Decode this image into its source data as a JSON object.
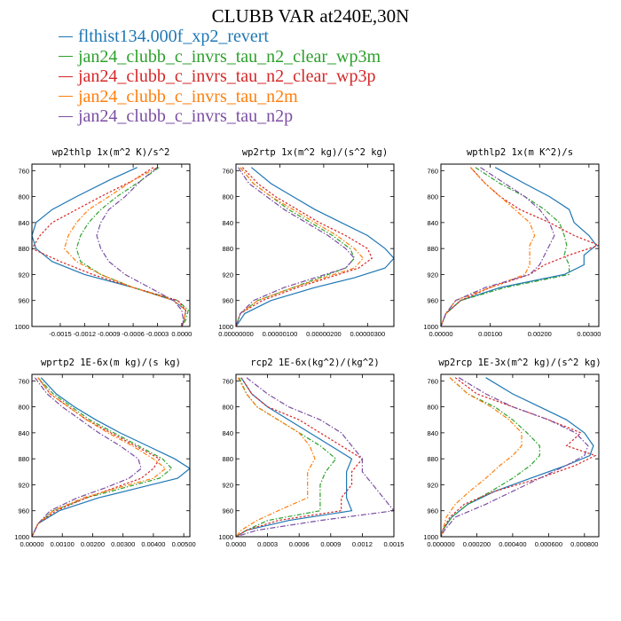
{
  "title": "CLUBB VAR at240E,30N",
  "legend": [
    {
      "name": "flthist134.000f_xp2_revert",
      "color": "#1f77b4"
    },
    {
      "name": "jan24_clubb_c_invrs_tau_n2_clear_wp3m",
      "color": "#2ca02c"
    },
    {
      "name": "jan24_clubb_c_invrs_tau_n2_clear_wp3p",
      "color": "#d62728"
    },
    {
      "name": "jan24_clubb_c_invrs_tau_n2m",
      "color": "#ff7f0e"
    },
    {
      "name": "jan24_clubb_c_invrs_tau_n2p",
      "color": "#7b4ea3"
    }
  ],
  "chart_data": [
    {
      "type": "line",
      "title": "wp2thlp  1x(m^2 K)/s^2",
      "xlim": [
        -0.00185,
        0.0001
      ],
      "ylim": [
        750,
        1000
      ],
      "y_inverted": true,
      "xticks": [
        -0.0015,
        -0.0012,
        -0.0009,
        -0.0006,
        -0.0003,
        0.0
      ],
      "xticklabels": [
        "-0.0015",
        "-0.0012",
        "-0.0009",
        "-0.0006",
        "-0.0003",
        "0.0000"
      ],
      "yticks": [
        760,
        800,
        840,
        880,
        920,
        960,
        1000
      ],
      "y": [
        755,
        775,
        800,
        820,
        840,
        860,
        880,
        900,
        920,
        940,
        960,
        975,
        990,
        1000
      ],
      "series": [
        {
          "name": "flthist134.000f_xp2_revert",
          "x": [
            -0.00055,
            -0.0009,
            -0.0013,
            -0.0016,
            -0.0018,
            -0.00185,
            -0.0018,
            -0.0016,
            -0.0012,
            -0.0006,
            -0.0001,
            5e-05,
            3e-05,
            0.0
          ]
        },
        {
          "name": "jan24_clubb_c_invrs_tau_n2_clear_wp3m",
          "x": [
            -0.00028,
            -0.0005,
            -0.0008,
            -0.001,
            -0.00115,
            -0.00125,
            -0.0013,
            -0.00125,
            -0.001,
            -0.0006,
            -5e-05,
            8e-05,
            5e-05,
            0.0
          ]
        },
        {
          "name": "jan24_clubb_c_invrs_tau_n2_clear_wp3p",
          "x": [
            -0.00035,
            -0.0006,
            -0.001,
            -0.0013,
            -0.0016,
            -0.00175,
            -0.00185,
            -0.0015,
            -0.0011,
            -0.0006,
            -5e-05,
            5e-05,
            3e-05,
            0.0
          ]
        },
        {
          "name": "jan24_clubb_c_invrs_tau_n2m",
          "x": [
            -0.0003,
            -0.0006,
            -0.0009,
            -0.00115,
            -0.0013,
            -0.0014,
            -0.00145,
            -0.0013,
            -0.001,
            -0.0006,
            -0.0001,
            5e-05,
            3e-05,
            0.0
          ]
        },
        {
          "name": "jan24_clubb_c_invrs_tau_n2p",
          "x": [
            -0.0003,
            -0.0005,
            -0.0007,
            -0.0009,
            -0.001,
            -0.00105,
            -0.001,
            -0.0009,
            -0.0007,
            -0.0004,
            -0.0001,
            0.0,
            2e-05,
            0.0
          ]
        }
      ]
    },
    {
      "type": "line",
      "title": "wp2rtp  1x(m^2 kg)/(s^2 kg)",
      "xlim": [
        0.0,
        3.6e-06
      ],
      "ylim": [
        750,
        1000
      ],
      "y_inverted": true,
      "xticks": [
        0.0,
        1e-06,
        2e-06,
        3e-06
      ],
      "xticklabels": [
        "0.00000000",
        "0.00000100",
        "0.00000200",
        "0.00000300"
      ],
      "yticks": [
        760,
        800,
        840,
        880,
        920,
        960,
        1000
      ],
      "y": [
        755,
        780,
        800,
        820,
        840,
        860,
        880,
        895,
        910,
        925,
        940,
        960,
        980,
        1000
      ],
      "series": [
        {
          "name": "flthist134.000f_xp2_revert",
          "x": [
            3.5e-07,
            8e-07,
            1.3e-06,
            1.8e-06,
            2.4e-06,
            3e-06,
            3.4e-06,
            3.6e-06,
            3.4e-06,
            2.7e-06,
            1.8e-06,
            8e-07,
            2e-07,
            0.0
          ]
        },
        {
          "name": "jan24_clubb_c_invrs_tau_n2_clear_wp3m",
          "x": [
            1e-07,
            4e-07,
            8e-07,
            1.2e-06,
            1.7e-06,
            2.2e-06,
            2.6e-06,
            2.7e-06,
            2.5e-06,
            1.9e-06,
            1.3e-06,
            5e-07,
            1e-07,
            0.0
          ]
        },
        {
          "name": "jan24_clubb_c_invrs_tau_n2_clear_wp3p",
          "x": [
            1.5e-07,
            5e-07,
            9e-07,
            1.4e-06,
            1.9e-06,
            2.5e-06,
            3e-06,
            3.1e-06,
            2.8e-06,
            2.1e-06,
            1.4e-06,
            6e-07,
            1e-07,
            0.0
          ]
        },
        {
          "name": "jan24_clubb_c_invrs_tau_n2m",
          "x": [
            1e-07,
            4e-07,
            8e-07,
            1.3e-06,
            1.8e-06,
            2.3e-06,
            2.7e-06,
            2.9e-06,
            2.7e-06,
            2e-06,
            1.3e-06,
            5e-07,
            1e-07,
            0.0
          ]
        },
        {
          "name": "jan24_clubb_c_invrs_tau_n2p",
          "x": [
            5e-08,
            3e-07,
            7e-07,
            1.1e-06,
            1.6e-06,
            2.1e-06,
            2.5e-06,
            2.7e-06,
            2.5e-06,
            1.8e-06,
            1.1e-06,
            4e-07,
            1e-07,
            0.0
          ]
        }
      ]
    },
    {
      "type": "line",
      "title": "wpthlp2  1x(m K^2)/s",
      "xlim": [
        0.0,
        0.0032
      ],
      "ylim": [
        750,
        1000
      ],
      "y_inverted": true,
      "xticks": [
        0.0,
        0.001,
        0.002,
        0.003
      ],
      "xticklabels": [
        "0.00000",
        "0.00100",
        "0.00200",
        "0.00300"
      ],
      "yticks": [
        760,
        800,
        840,
        880,
        920,
        960,
        1000
      ],
      "y": [
        755,
        780,
        800,
        820,
        840,
        860,
        875,
        890,
        905,
        920,
        940,
        960,
        980,
        1000
      ],
      "series": [
        {
          "name": "flthist134.000f_xp2_revert",
          "x": [
            0.0011,
            0.0017,
            0.0022,
            0.0026,
            0.0027,
            0.003,
            0.00315,
            0.0029,
            0.0029,
            0.0025,
            0.0012,
            0.0004,
            0.0001,
            0.0
          ]
        },
        {
          "name": "jan24_clubb_c_invrs_tau_n2_clear_wp3m",
          "x": [
            0.0007,
            0.0012,
            0.0017,
            0.0021,
            0.0024,
            0.0025,
            0.00255,
            0.0025,
            0.0026,
            0.0026,
            0.0013,
            0.0004,
            0.0001,
            0.0
          ]
        },
        {
          "name": "jan24_clubb_c_invrs_tau_n2_clear_wp3p",
          "x": [
            0.0006,
            0.0009,
            0.0012,
            0.0016,
            0.0022,
            0.0027,
            0.0032,
            0.0026,
            0.0021,
            0.0018,
            0.001,
            0.0004,
            0.0001,
            0.0
          ]
        },
        {
          "name": "jan24_clubb_c_invrs_tau_n2m",
          "x": [
            0.0006,
            0.0009,
            0.0012,
            0.0015,
            0.0018,
            0.0019,
            0.0018,
            0.0018,
            0.0018,
            0.0017,
            0.001,
            0.0003,
            0.0001,
            0.0
          ]
        },
        {
          "name": "jan24_clubb_c_invrs_tau_n2p",
          "x": [
            0.0008,
            0.0013,
            0.0017,
            0.002,
            0.0022,
            0.0023,
            0.0022,
            0.0021,
            0.002,
            0.0018,
            0.0009,
            0.0003,
            0.0001,
            0.0
          ]
        }
      ]
    },
    {
      "type": "line",
      "title": "wprtp2  1E-6x(m kg)/(s kg)",
      "xlim": [
        0.0,
        0.0052
      ],
      "ylim": [
        750,
        1000
      ],
      "y_inverted": true,
      "xticks": [
        0.0,
        0.001,
        0.002,
        0.003,
        0.004,
        0.005
      ],
      "xticklabels": [
        "0.00000",
        "0.00100",
        "0.00200",
        "0.00300",
        "0.00400",
        "0.00500"
      ],
      "yticks": [
        760,
        800,
        840,
        880,
        920,
        960,
        1000
      ],
      "y": [
        755,
        780,
        800,
        820,
        840,
        860,
        880,
        895,
        910,
        925,
        940,
        960,
        980,
        1000
      ],
      "series": [
        {
          "name": "flthist134.000f_xp2_revert",
          "x": [
            0.0003,
            0.0008,
            0.0014,
            0.0021,
            0.0029,
            0.0038,
            0.0047,
            0.0052,
            0.0048,
            0.0035,
            0.0022,
            0.0009,
            0.0002,
            0.0
          ]
        },
        {
          "name": "jan24_clubb_c_invrs_tau_n2_clear_wp3m",
          "x": [
            0.0002,
            0.0007,
            0.0013,
            0.0019,
            0.0027,
            0.0035,
            0.0043,
            0.0046,
            0.0042,
            0.003,
            0.0018,
            0.0007,
            0.0002,
            0.0
          ]
        },
        {
          "name": "jan24_clubb_c_invrs_tau_n2_clear_wp3p",
          "x": [
            0.0002,
            0.0006,
            0.0012,
            0.0018,
            0.0026,
            0.0034,
            0.0042,
            0.004,
            0.0036,
            0.0027,
            0.0018,
            0.0008,
            0.0002,
            0.0
          ]
        },
        {
          "name": "jan24_clubb_c_invrs_tau_n2m",
          "x": [
            0.0002,
            0.0006,
            0.0012,
            0.0018,
            0.0025,
            0.0033,
            0.004,
            0.0044,
            0.004,
            0.0028,
            0.0017,
            0.0007,
            0.0002,
            0.0
          ]
        },
        {
          "name": "jan24_clubb_c_invrs_tau_n2p",
          "x": [
            0.0001,
            0.0005,
            0.001,
            0.0016,
            0.0022,
            0.0029,
            0.0035,
            0.0036,
            0.0032,
            0.0024,
            0.0015,
            0.0006,
            0.0002,
            0.0
          ]
        }
      ]
    },
    {
      "type": "line",
      "title": "rcp2  1E-6x(kg^2)/(kg^2)",
      "xlim": [
        0.0,
        0.0015
      ],
      "ylim": [
        750,
        1000
      ],
      "y_inverted": true,
      "xticks": [
        0.0,
        0.0003,
        0.0006,
        0.0009,
        0.0012,
        0.0015
      ],
      "xticklabels": [
        "0.0000",
        "0.0003",
        "0.0006",
        "0.0009",
        "0.0012",
        "0.0015"
      ],
      "yticks": [
        760,
        800,
        840,
        880,
        920,
        960,
        1000
      ],
      "y": [
        755,
        780,
        800,
        820,
        840,
        860,
        880,
        900,
        920,
        940,
        960,
        975,
        990,
        1000
      ],
      "series": [
        {
          "name": "flthist134.000f_xp2_revert",
          "x": [
            5e-05,
            0.00015,
            0.0003,
            0.0005,
            0.0007,
            0.0009,
            0.0011,
            0.00105,
            0.00105,
            0.00105,
            0.0011,
            0.0005,
            0.0001,
            0.0
          ]
        },
        {
          "name": "jan24_clubb_c_invrs_tau_n2_clear_wp3m",
          "x": [
            3e-05,
            0.0001,
            0.0002,
            0.0004,
            0.0006,
            0.0008,
            0.00095,
            0.00085,
            0.0008,
            0.0008,
            0.0008,
            0.0003,
            0.0001,
            0.0
          ]
        },
        {
          "name": "jan24_clubb_c_invrs_tau_n2_clear_wp3p",
          "x": [
            5e-05,
            0.00015,
            0.0003,
            0.0006,
            0.0008,
            0.001,
            0.0012,
            0.0011,
            0.0011,
            0.001,
            0.001,
            0.0004,
            0.0001,
            0.0
          ]
        },
        {
          "name": "jan24_clubb_c_invrs_tau_n2m",
          "x": [
            2e-05,
            0.0001,
            0.0002,
            0.0004,
            0.0006,
            0.0007,
            0.00075,
            0.00068,
            0.00068,
            0.00068,
            0.0004,
            0.0002,
            5e-05,
            0.0
          ]
        },
        {
          "name": "jan24_clubb_c_invrs_tau_n2p",
          "x": [
            0.0001,
            0.0003,
            0.0005,
            0.0008,
            0.001,
            0.0011,
            0.0012,
            0.0012,
            0.0013,
            0.0014,
            0.0015,
            0.0008,
            0.0002,
            0.0
          ]
        }
      ]
    },
    {
      "type": "line",
      "title": "wp2rcp  1E-3x(m^2 kg)/(s^2 kg)",
      "xlim": [
        0.0,
        0.00088
      ],
      "ylim": [
        750,
        1000
      ],
      "y_inverted": true,
      "xticks": [
        0.0,
        0.0002,
        0.0004,
        0.0006,
        0.0008
      ],
      "xticklabels": [
        "0.000000",
        "0.000200",
        "0.000400",
        "0.000600",
        "0.000800"
      ],
      "yticks": [
        760,
        800,
        840,
        880,
        920,
        960,
        1000
      ],
      "y": [
        755,
        780,
        800,
        820,
        840,
        860,
        875,
        890,
        910,
        930,
        950,
        970,
        990,
        1000
      ],
      "series": [
        {
          "name": "flthist134.000f_xp2_revert",
          "x": [
            0.00025,
            0.0004,
            0.00055,
            0.0007,
            0.0008,
            0.00085,
            0.00083,
            0.0007,
            0.0005,
            0.0003,
            0.00015,
            6e-05,
            1e-05,
            0.0
          ]
        },
        {
          "name": "jan24_clubb_c_invrs_tau_n2_clear_wp3m",
          "x": [
            5e-05,
            0.00015,
            0.0003,
            0.0004,
            0.00048,
            0.00055,
            0.00055,
            0.0005,
            0.0004,
            0.00028,
            0.00015,
            6e-05,
            1e-05,
            0.0
          ]
        },
        {
          "name": "jan24_clubb_c_invrs_tau_n2_clear_wp3p",
          "x": [
            8e-05,
            0.0002,
            0.0004,
            0.0006,
            0.00078,
            0.0007,
            0.00086,
            0.00075,
            0.00055,
            0.0003,
            0.00013,
            5e-05,
            1e-05,
            0.0
          ]
        },
        {
          "name": "jan24_clubb_c_invrs_tau_n2m",
          "x": [
            5e-05,
            0.00015,
            0.00028,
            0.00038,
            0.00045,
            0.00045,
            0.0004,
            0.00033,
            0.00025,
            0.00016,
            8e-05,
            3e-05,
            1e-05,
            0.0
          ]
        },
        {
          "name": "jan24_clubb_c_invrs_tau_n2p",
          "x": [
            0.0001,
            0.00025,
            0.0004,
            0.0006,
            0.00075,
            0.00082,
            0.0008,
            0.0007,
            0.00055,
            0.0004,
            0.00025,
            8e-05,
            2e-05,
            0.0
          ]
        }
      ]
    }
  ]
}
